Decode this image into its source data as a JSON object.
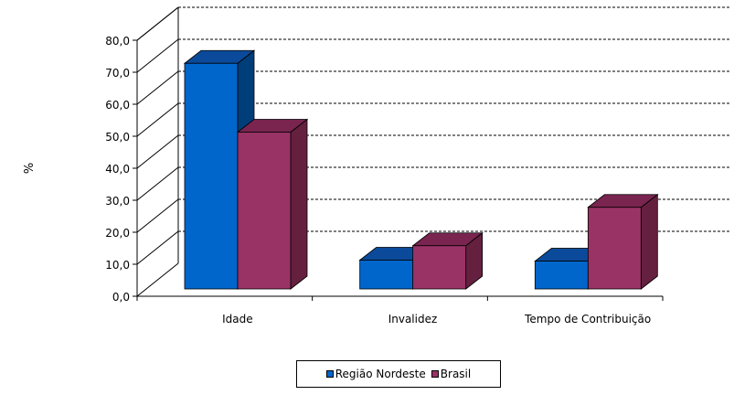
{
  "chart_data": {
    "type": "bar",
    "ylabel": "%",
    "ylim": [
      0,
      80
    ],
    "yticks": [
      "0,0",
      "10,0",
      "20,0",
      "30,0",
      "40,0",
      "50,0",
      "60,0",
      "70,0",
      "80,0"
    ],
    "categories": [
      "Idade",
      "Invalidez",
      "Tempo de Contribuição"
    ],
    "series": [
      {
        "name": "Região Nordeste",
        "values": [
          74.5,
          13.0,
          12.7
        ],
        "color": "#0066CC",
        "top_color": "#0B4A9A",
        "side_color": "#003E7A"
      },
      {
        "name": "Brasil",
        "values": [
          53.0,
          17.5,
          29.5
        ],
        "color": "#993366",
        "top_color": "#7A2450",
        "side_color": "#66203F"
      }
    ],
    "grid": true,
    "gridline_style": "dashed",
    "legend_position": "bottom-center",
    "three_d": true
  }
}
